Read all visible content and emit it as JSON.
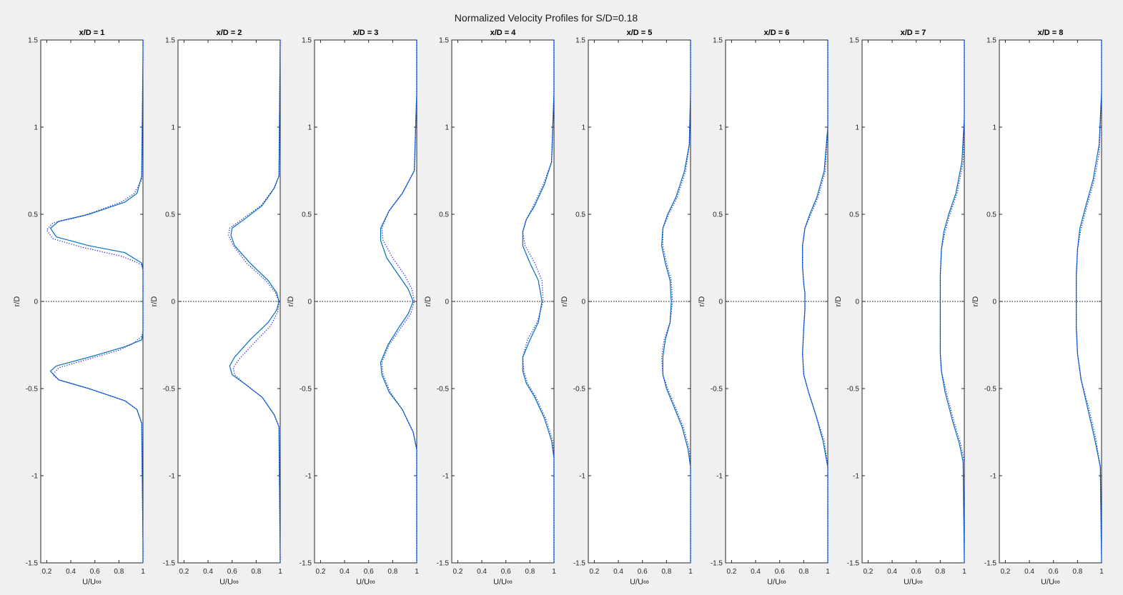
{
  "figure": {
    "title": "Normalized Velocity Profiles for S/D=0.18",
    "background": "#f0f0f0"
  },
  "chart_data": [
    {
      "type": "line",
      "title": "x/D = 1",
      "xlabel": "U/U∞",
      "ylabel": "r/D",
      "xlim": [
        0.15,
        1.0
      ],
      "ylim": [
        -1.5,
        1.5
      ],
      "xticks": [
        "0.2",
        "0.4",
        "0.6",
        "0.8",
        "1"
      ],
      "yticks": [
        "-1.5",
        "-1",
        "-0.5",
        "0",
        "0.5",
        "1",
        "1.5"
      ],
      "grid": false,
      "series": [
        {
          "style": "solid",
          "color": "#0072bd",
          "x": [
            1.0,
            1.0,
            0.99,
            0.95,
            0.85,
            0.55,
            0.3,
            0.23,
            0.28,
            0.55,
            0.85,
            0.99,
            1.0,
            1.0,
            0.99,
            0.85,
            0.55,
            0.28,
            0.23,
            0.3,
            0.55,
            0.85,
            0.95,
            0.99,
            1.0,
            1.0
          ],
          "y": [
            1.5,
            1.4,
            0.72,
            0.62,
            0.57,
            0.5,
            0.46,
            0.42,
            0.37,
            0.32,
            0.28,
            0.22,
            0.18,
            -0.18,
            -0.22,
            -0.26,
            -0.32,
            -0.37,
            -0.4,
            -0.45,
            -0.5,
            -0.57,
            -0.62,
            -0.7,
            -1.4,
            -1.5
          ]
        },
        {
          "style": "dotted",
          "color": "#2222ee",
          "x": [
            1.0,
            1.0,
            0.99,
            0.93,
            0.82,
            0.5,
            0.25,
            0.2,
            0.25,
            0.5,
            0.82,
            0.93,
            0.99,
            1.0,
            1.0,
            0.99,
            0.92,
            0.8,
            0.5,
            0.3,
            0.25,
            0.3,
            0.55,
            0.85,
            0.95,
            0.99,
            1.0,
            1.0
          ],
          "y": [
            1.5,
            1.4,
            0.7,
            0.62,
            0.57,
            0.49,
            0.45,
            0.41,
            0.36,
            0.31,
            0.26,
            0.23,
            0.21,
            0.18,
            -0.17,
            -0.2,
            -0.24,
            -0.28,
            -0.34,
            -0.38,
            -0.42,
            -0.45,
            -0.5,
            -0.57,
            -0.62,
            -0.7,
            -1.4,
            -1.5
          ]
        }
      ]
    },
    {
      "type": "line",
      "title": "x/D = 2",
      "xlabel": "U/U∞",
      "ylabel": "r/D",
      "xlim": [
        0.15,
        1.0
      ],
      "ylim": [
        -1.5,
        1.5
      ],
      "xticks": [
        "0.2",
        "0.4",
        "0.6",
        "0.8",
        "1"
      ],
      "yticks": [
        "-1.5",
        "-1",
        "-0.5",
        "0",
        "0.5",
        "1",
        "1.5"
      ],
      "grid": false,
      "series": [
        {
          "style": "solid",
          "color": "#0072bd",
          "x": [
            1.0,
            0.99,
            0.95,
            0.85,
            0.7,
            0.6,
            0.59,
            0.62,
            0.75,
            0.9,
            0.97,
            0.99,
            0.97,
            0.9,
            0.75,
            0.62,
            0.58,
            0.6,
            0.7,
            0.85,
            0.95,
            0.99,
            1.0
          ],
          "y": [
            1.5,
            0.72,
            0.65,
            0.55,
            0.47,
            0.42,
            0.38,
            0.32,
            0.22,
            0.12,
            0.05,
            0.0,
            -0.05,
            -0.12,
            -0.22,
            -0.32,
            -0.37,
            -0.42,
            -0.47,
            -0.55,
            -0.65,
            -0.72,
            -1.5
          ]
        },
        {
          "style": "dotted",
          "color": "#2222ee",
          "x": [
            1.0,
            0.99,
            0.95,
            0.84,
            0.68,
            0.58,
            0.57,
            0.61,
            0.72,
            0.88,
            0.96,
            0.99,
            0.98,
            0.92,
            0.78,
            0.66,
            0.61,
            0.62,
            0.7,
            0.85,
            0.95,
            0.99,
            1.0
          ],
          "y": [
            1.5,
            0.72,
            0.65,
            0.55,
            0.47,
            0.42,
            0.38,
            0.32,
            0.22,
            0.12,
            0.05,
            0.0,
            -0.06,
            -0.14,
            -0.24,
            -0.33,
            -0.38,
            -0.42,
            -0.47,
            -0.55,
            -0.65,
            -0.72,
            -1.5
          ]
        }
      ]
    },
    {
      "type": "line",
      "title": "x/D = 3",
      "xlabel": "U/U∞",
      "ylabel": "r/D",
      "xlim": [
        0.15,
        1.0
      ],
      "ylim": [
        -1.5,
        1.5
      ],
      "xticks": [
        "0.2",
        "0.4",
        "0.6",
        "0.8",
        "1"
      ],
      "yticks": [
        "-1.5",
        "-1",
        "-0.5",
        "0",
        "0.5",
        "1",
        "1.5"
      ],
      "grid": false,
      "series": [
        {
          "style": "solid",
          "color": "#0072bd",
          "x": [
            1.0,
            1.0,
            0.98,
            0.88,
            0.77,
            0.7,
            0.7,
            0.75,
            0.85,
            0.93,
            0.97,
            0.93,
            0.85,
            0.76,
            0.7,
            0.71,
            0.77,
            0.88,
            0.97,
            1.0,
            1.0
          ],
          "y": [
            1.5,
            1.2,
            0.75,
            0.62,
            0.52,
            0.42,
            0.35,
            0.25,
            0.15,
            0.07,
            0.0,
            -0.07,
            -0.15,
            -0.25,
            -0.35,
            -0.42,
            -0.52,
            -0.62,
            -0.75,
            -0.85,
            -1.5
          ]
        },
        {
          "style": "dotted",
          "color": "#2222ee",
          "x": [
            1.0,
            1.0,
            0.98,
            0.88,
            0.77,
            0.71,
            0.72,
            0.8,
            0.9,
            0.96,
            0.98,
            0.95,
            0.87,
            0.77,
            0.71,
            0.72,
            0.78,
            0.88,
            0.97,
            1.0,
            1.0
          ],
          "y": [
            1.5,
            1.2,
            0.75,
            0.62,
            0.52,
            0.42,
            0.35,
            0.25,
            0.15,
            0.07,
            0.0,
            -0.07,
            -0.15,
            -0.25,
            -0.35,
            -0.42,
            -0.52,
            -0.62,
            -0.75,
            -0.85,
            -1.5
          ]
        }
      ]
    },
    {
      "type": "line",
      "title": "x/D = 4",
      "xlabel": "U/U∞",
      "ylabel": "r/D",
      "xlim": [
        0.15,
        1.0
      ],
      "ylim": [
        -1.5,
        1.5
      ],
      "xticks": [
        "0.2",
        "0.4",
        "0.6",
        "0.8",
        "1"
      ],
      "yticks": [
        "-1.5",
        "-1",
        "-0.5",
        "0",
        "0.5",
        "1",
        "1.5"
      ],
      "grid": false,
      "series": [
        {
          "style": "solid",
          "color": "#0072bd",
          "x": [
            1.0,
            1.0,
            0.98,
            0.92,
            0.84,
            0.77,
            0.74,
            0.74,
            0.8,
            0.87,
            0.9,
            0.87,
            0.8,
            0.74,
            0.74,
            0.77,
            0.84,
            0.92,
            0.98,
            1.0,
            1.0
          ],
          "y": [
            1.5,
            1.2,
            0.8,
            0.67,
            0.55,
            0.47,
            0.4,
            0.32,
            0.22,
            0.12,
            0.0,
            -0.12,
            -0.22,
            -0.32,
            -0.4,
            -0.47,
            -0.55,
            -0.67,
            -0.8,
            -0.9,
            -1.5
          ]
        },
        {
          "style": "dotted",
          "color": "#2222ee",
          "x": [
            1.0,
            1.0,
            0.98,
            0.91,
            0.83,
            0.77,
            0.74,
            0.76,
            0.84,
            0.9,
            0.91,
            0.86,
            0.78,
            0.74,
            0.75,
            0.78,
            0.85,
            0.93,
            0.99,
            1.0,
            1.0
          ],
          "y": [
            1.5,
            1.2,
            0.8,
            0.67,
            0.55,
            0.47,
            0.4,
            0.32,
            0.22,
            0.12,
            0.0,
            -0.12,
            -0.22,
            -0.32,
            -0.4,
            -0.47,
            -0.55,
            -0.67,
            -0.8,
            -0.9,
            -1.5
          ]
        }
      ]
    },
    {
      "type": "line",
      "title": "x/D = 5",
      "xlabel": "U/U∞",
      "ylabel": "r/D",
      "xlim": [
        0.15,
        1.0
      ],
      "ylim": [
        -1.5,
        1.5
      ],
      "xticks": [
        "0.2",
        "0.4",
        "0.6",
        "0.8",
        "1"
      ],
      "yticks": [
        "-1.5",
        "-1",
        "-0.5",
        "0",
        "0.5",
        "1",
        "1.5"
      ],
      "grid": false,
      "series": [
        {
          "style": "solid",
          "color": "#0072bd",
          "x": [
            1.0,
            1.0,
            0.99,
            0.95,
            0.88,
            0.81,
            0.77,
            0.76,
            0.79,
            0.83,
            0.84,
            0.83,
            0.79,
            0.77,
            0.77,
            0.8,
            0.86,
            0.93,
            0.98,
            1.0,
            1.0
          ],
          "y": [
            1.5,
            1.2,
            0.9,
            0.75,
            0.6,
            0.5,
            0.42,
            0.32,
            0.22,
            0.12,
            0.0,
            -0.12,
            -0.22,
            -0.32,
            -0.42,
            -0.5,
            -0.6,
            -0.72,
            -0.85,
            -0.95,
            -1.5
          ]
        },
        {
          "style": "dotted",
          "color": "#2222ee",
          "x": [
            1.0,
            1.0,
            0.99,
            0.96,
            0.89,
            0.82,
            0.77,
            0.77,
            0.8,
            0.84,
            0.85,
            0.83,
            0.78,
            0.76,
            0.77,
            0.81,
            0.87,
            0.94,
            0.99,
            1.0,
            1.0
          ],
          "y": [
            1.5,
            1.2,
            0.9,
            0.75,
            0.6,
            0.5,
            0.42,
            0.32,
            0.22,
            0.12,
            0.0,
            -0.12,
            -0.22,
            -0.32,
            -0.42,
            -0.5,
            -0.6,
            -0.72,
            -0.85,
            -0.95,
            -1.5
          ]
        }
      ]
    },
    {
      "type": "line",
      "title": "x/D = 6",
      "xlabel": "U/U∞",
      "ylabel": "r/D",
      "xlim": [
        0.15,
        1.0
      ],
      "ylim": [
        -1.5,
        1.5
      ],
      "xticks": [
        "0.2",
        "0.4",
        "0.6",
        "0.8",
        "1"
      ],
      "yticks": [
        "-1.5",
        "-1",
        "-0.5",
        "0",
        "0.5",
        "1",
        "1.5"
      ],
      "grid": false,
      "series": [
        {
          "style": "solid",
          "color": "#0072bd",
          "x": [
            1.0,
            1.0,
            0.97,
            0.91,
            0.85,
            0.81,
            0.79,
            0.79,
            0.8,
            0.81,
            0.81,
            0.81,
            0.8,
            0.79,
            0.8,
            0.84,
            0.9,
            0.96,
            1.0,
            1.0
          ],
          "y": [
            1.5,
            1.0,
            0.75,
            0.6,
            0.5,
            0.42,
            0.32,
            0.2,
            0.1,
            0.05,
            0.0,
            -0.05,
            -0.15,
            -0.3,
            -0.42,
            -0.52,
            -0.65,
            -0.8,
            -0.95,
            -1.5
          ]
        },
        {
          "style": "dotted",
          "color": "#2222ee",
          "x": [
            1.0,
            1.0,
            0.98,
            0.92,
            0.86,
            0.81,
            0.79,
            0.79,
            0.8,
            0.81,
            0.81,
            0.81,
            0.8,
            0.79,
            0.8,
            0.84,
            0.9,
            0.97,
            1.0,
            1.0
          ],
          "y": [
            1.5,
            1.0,
            0.75,
            0.6,
            0.5,
            0.42,
            0.32,
            0.2,
            0.1,
            0.05,
            0.0,
            -0.05,
            -0.15,
            -0.3,
            -0.42,
            -0.52,
            -0.65,
            -0.8,
            -0.95,
            -1.5
          ]
        }
      ]
    },
    {
      "type": "line",
      "title": "x/D = 7",
      "xlabel": "U/U∞",
      "ylabel": "r/D",
      "xlim": [
        0.15,
        1.0
      ],
      "ylim": [
        -1.5,
        1.5
      ],
      "xticks": [
        "0.2",
        "0.4",
        "0.6",
        "0.8",
        "1"
      ],
      "yticks": [
        "-1.5",
        "-1",
        "-0.5",
        "0",
        "0.5",
        "1",
        "1.5"
      ],
      "grid": false,
      "series": [
        {
          "style": "solid",
          "color": "#0072bd",
          "x": [
            1.0,
            1.0,
            0.98,
            0.93,
            0.87,
            0.83,
            0.81,
            0.8,
            0.8,
            0.8,
            0.8,
            0.81,
            0.84,
            0.9,
            0.96,
            0.99,
            1.0
          ],
          "y": [
            1.5,
            1.05,
            0.8,
            0.62,
            0.5,
            0.4,
            0.3,
            0.15,
            0.0,
            -0.15,
            -0.3,
            -0.4,
            -0.52,
            -0.68,
            -0.82,
            -0.92,
            -1.5
          ]
        },
        {
          "style": "dotted",
          "color": "#2222ee",
          "x": [
            1.0,
            1.0,
            0.99,
            0.94,
            0.88,
            0.84,
            0.81,
            0.8,
            0.8,
            0.8,
            0.8,
            0.81,
            0.85,
            0.91,
            0.97,
            1.0,
            1.0
          ],
          "y": [
            1.5,
            1.05,
            0.8,
            0.62,
            0.5,
            0.4,
            0.3,
            0.15,
            0.0,
            -0.15,
            -0.3,
            -0.4,
            -0.52,
            -0.68,
            -0.82,
            -0.92,
            -1.5
          ]
        }
      ]
    },
    {
      "type": "line",
      "title": "x/D = 8",
      "xlabel": "U/U∞",
      "ylabel": "r/D",
      "xlim": [
        0.15,
        1.0
      ],
      "ylim": [
        -1.5,
        1.5
      ],
      "xticks": [
        "0.2",
        "0.4",
        "0.6",
        "0.8",
        "1"
      ],
      "yticks": [
        "-1.5",
        "-1",
        "-0.5",
        "0",
        "0.5",
        "1",
        "1.5"
      ],
      "grid": false,
      "series": [
        {
          "style": "solid",
          "color": "#0072bd",
          "x": [
            1.0,
            1.0,
            0.98,
            0.93,
            0.87,
            0.82,
            0.8,
            0.79,
            0.79,
            0.79,
            0.8,
            0.83,
            0.88,
            0.94,
            0.99,
            1.0
          ],
          "y": [
            1.5,
            1.2,
            0.9,
            0.7,
            0.55,
            0.42,
            0.3,
            0.15,
            0.0,
            -0.15,
            -0.3,
            -0.45,
            -0.6,
            -0.78,
            -0.95,
            -1.5
          ]
        },
        {
          "style": "dotted",
          "color": "#2222ee",
          "x": [
            1.0,
            1.0,
            0.98,
            0.94,
            0.88,
            0.83,
            0.8,
            0.79,
            0.79,
            0.79,
            0.8,
            0.83,
            0.89,
            0.95,
            0.99,
            1.0
          ],
          "y": [
            1.5,
            1.2,
            0.85,
            0.7,
            0.55,
            0.42,
            0.3,
            0.15,
            0.0,
            -0.15,
            -0.3,
            -0.45,
            -0.6,
            -0.78,
            -0.95,
            -1.5
          ]
        }
      ]
    }
  ]
}
